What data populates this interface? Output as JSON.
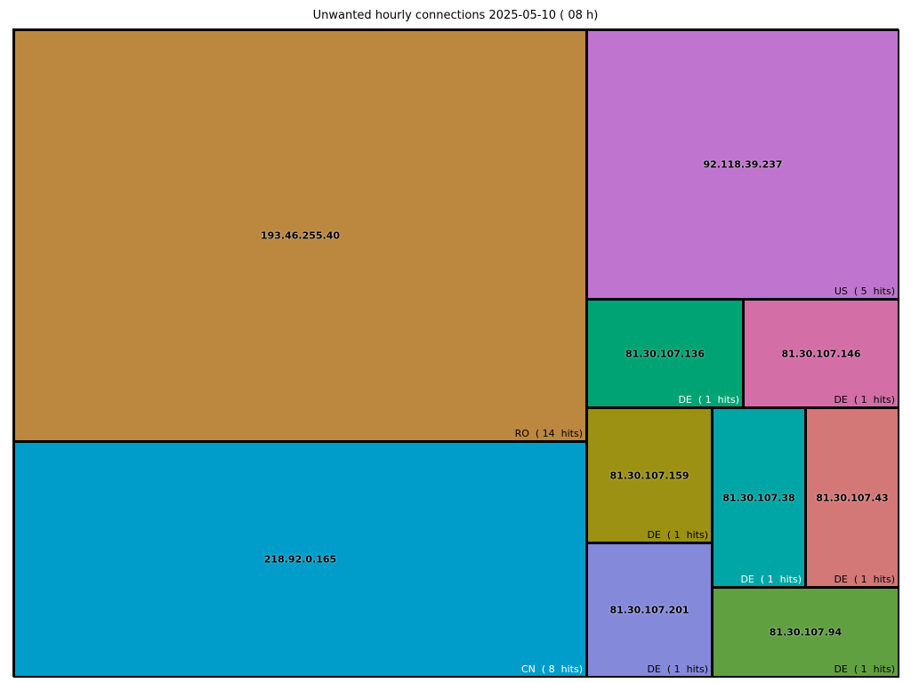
{
  "chart_data": {
    "type": "treemap",
    "title": "Unwanted hourly connections  2025-05-10  ( 08 h)",
    "items": [
      {
        "ip": "193.46.255.40",
        "country": "RO",
        "hits": 14,
        "meta": "RO  ( 14  hits)",
        "color": "#bc873f",
        "meta_light": false
      },
      {
        "ip": "218.92.0.165",
        "country": "CN",
        "hits": 8,
        "meta": "CN  ( 8  hits)",
        "color": "#009dcb",
        "meta_light": true
      },
      {
        "ip": "92.118.39.237",
        "country": "US",
        "hits": 5,
        "meta": "US  ( 5  hits)",
        "color": "#bf75cf",
        "meta_light": false
      },
      {
        "ip": "81.30.107.136",
        "country": "DE",
        "hits": 1,
        "meta": "DE  ( 1  hits)",
        "color": "#00a373",
        "meta_light": true
      },
      {
        "ip": "81.30.107.146",
        "country": "DE",
        "hits": 1,
        "meta": "DE  ( 1  hits)",
        "color": "#d46ea6",
        "meta_light": false
      },
      {
        "ip": "81.30.107.159",
        "country": "DE",
        "hits": 1,
        "meta": "DE  ( 1  hits)",
        "color": "#9c9112",
        "meta_light": false
      },
      {
        "ip": "81.30.107.201",
        "country": "DE",
        "hits": 1,
        "meta": "DE  ( 1  hits)",
        "color": "#8589da",
        "meta_light": false
      },
      {
        "ip": "81.30.107.38",
        "country": "DE",
        "hits": 1,
        "meta": "DE  ( 1  hits)",
        "color": "#00a6a6",
        "meta_light": true
      },
      {
        "ip": "81.30.107.43",
        "country": "DE",
        "hits": 1,
        "meta": "DE  ( 1  hits)",
        "color": "#d37777",
        "meta_light": false
      },
      {
        "ip": "81.30.107.94",
        "country": "DE",
        "hits": 1,
        "meta": "DE  ( 1  hits)",
        "color": "#61a041",
        "meta_light": false
      }
    ]
  }
}
